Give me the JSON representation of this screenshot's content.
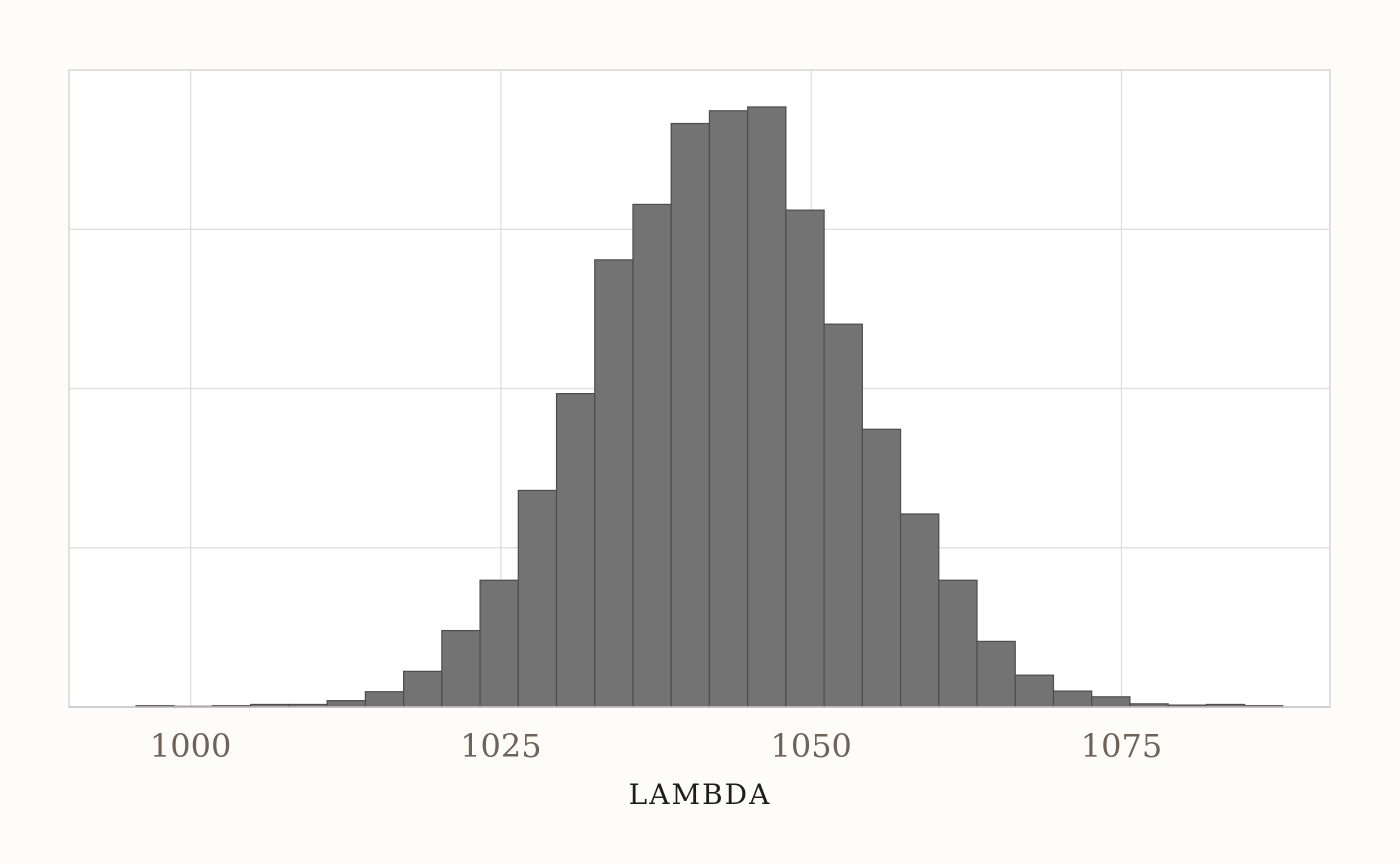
{
  "chart_data": {
    "type": "bar",
    "title": "",
    "xlabel": "LAMBDA",
    "ylabel": "",
    "xlim": [
      990.2,
      1091.8
    ],
    "ylim": [
      0,
      1000
    ],
    "grid": true,
    "x_ticks": [
      1000,
      1025,
      1050,
      1075
    ],
    "x_tick_labels": [
      "1000",
      "1025",
      "1050",
      "1075"
    ],
    "y_ticks": [
      0,
      250,
      500,
      750
    ],
    "y_tick_labels": [],
    "bar_color": "#737373",
    "bar_edge_color": "#4d4d4d",
    "grid_color": "#dcdcdc",
    "background_color": "#ffffff",
    "bin_width": 3.08,
    "bin_starts": [
      995.6,
      998.68,
      1001.76,
      1004.84,
      1007.92,
      1011.0,
      1014.08,
      1017.16,
      1020.24,
      1023.32,
      1026.4,
      1029.48,
      1032.56,
      1035.64,
      1038.72,
      1041.8,
      1044.88,
      1047.96,
      1051.04,
      1054.12,
      1057.2,
      1060.28,
      1063.36,
      1066.44,
      1069.52,
      1072.6,
      1075.68,
      1078.76,
      1081.84,
      1084.92
    ],
    "values": [
      2,
      1,
      2,
      4,
      4,
      10,
      24,
      56,
      120,
      199,
      340,
      492,
      702,
      789,
      916,
      936,
      942,
      780,
      601,
      436,
      303,
      199,
      103,
      50,
      25,
      16,
      5,
      3,
      4,
      2
    ]
  }
}
